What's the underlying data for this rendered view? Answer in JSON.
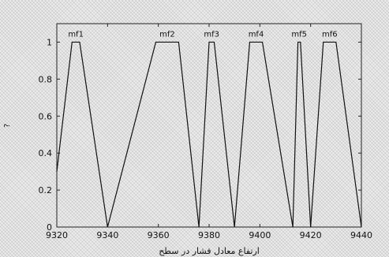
{
  "chart_data": {
    "type": "line",
    "title": "",
    "xlabel": "ارتفاع معادل فشار در سطح",
    "ylabel": "?",
    "xlim": [
      9320,
      9440
    ],
    "ylim": [
      0,
      1.1
    ],
    "xticks": [
      "9320",
      "9340",
      "9360",
      "9380",
      "9400",
      "9420",
      "9440"
    ],
    "yticks": [
      "0",
      "0.2",
      "0.4",
      "0.6",
      "0.8",
      "1"
    ],
    "grid": false,
    "series": [
      {
        "name": "mf1",
        "x": [
          9320,
          9326,
          9329,
          9340
        ],
        "y": [
          0.3,
          1,
          1,
          0
        ]
      },
      {
        "name": "mf2",
        "x": [
          9340,
          9359,
          9368,
          9376
        ],
        "y": [
          0,
          1,
          1,
          0
        ]
      },
      {
        "name": "mf3",
        "x": [
          9376,
          9380,
          9382,
          9390
        ],
        "y": [
          0,
          1,
          1,
          0
        ]
      },
      {
        "name": "mf4",
        "x": [
          9390,
          9396,
          9401,
          9413
        ],
        "y": [
          0,
          1,
          1,
          0
        ]
      },
      {
        "name": "mf5",
        "x": [
          9413,
          9415,
          9416,
          9420
        ],
        "y": [
          0,
          1,
          1,
          0
        ]
      },
      {
        "name": "mf6",
        "x": [
          9420,
          9425,
          9430,
          9440
        ],
        "y": [
          0,
          1,
          1,
          0
        ]
      }
    ]
  }
}
